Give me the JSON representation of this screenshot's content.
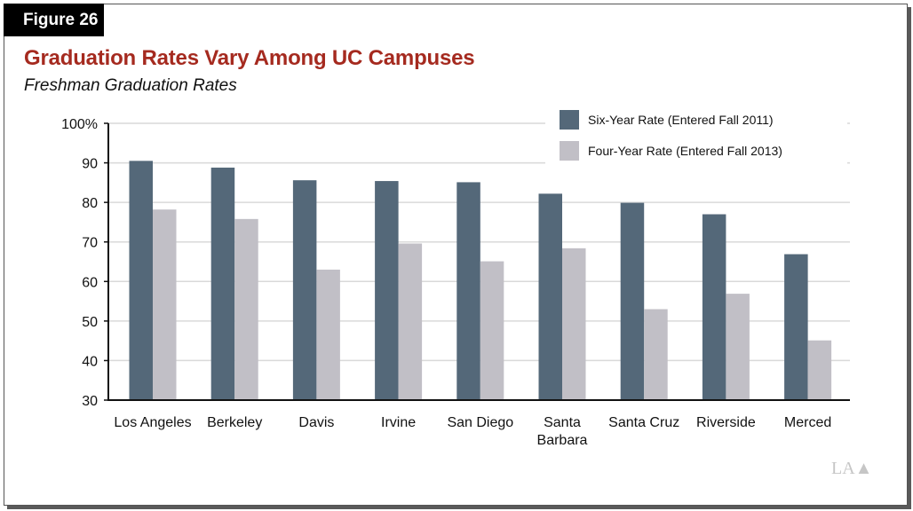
{
  "figure_label": "Figure 26",
  "logo_text": "LAO",
  "colors": {
    "six_year": "#546879",
    "four_year": "#c1bfc6",
    "title": "#a52a1f"
  },
  "chart_data": {
    "type": "bar",
    "title": "Graduation Rates Vary Among UC Campuses",
    "subtitle": "Freshman Graduation Rates",
    "xlabel": "",
    "ylabel": "",
    "ylim": [
      30,
      100
    ],
    "yticks": [
      "100%",
      "90",
      "80",
      "70",
      "60",
      "50",
      "40",
      "30"
    ],
    "ytick_values": [
      100,
      90,
      80,
      70,
      60,
      50,
      40,
      30
    ],
    "grid": true,
    "legend_position": "top-right",
    "categories": [
      [
        "Los Angeles"
      ],
      [
        "Berkeley"
      ],
      [
        "Davis"
      ],
      [
        "Irvine"
      ],
      [
        "San Diego"
      ],
      [
        "Santa",
        "Barbara"
      ],
      [
        "Santa Cruz"
      ],
      [
        "Riverside"
      ],
      [
        "Merced"
      ]
    ],
    "series": [
      {
        "name": "Six-Year Rate (Entered Fall 2011)",
        "values": [
          90.5,
          88.8,
          85.6,
          85.4,
          85.1,
          82.2,
          79.9,
          77.0,
          66.9
        ]
      },
      {
        "name": "Four-Year Rate (Entered Fall 2013)",
        "values": [
          78.2,
          75.8,
          63.0,
          69.6,
          65.1,
          68.4,
          53.0,
          56.9,
          45.1
        ]
      }
    ]
  }
}
